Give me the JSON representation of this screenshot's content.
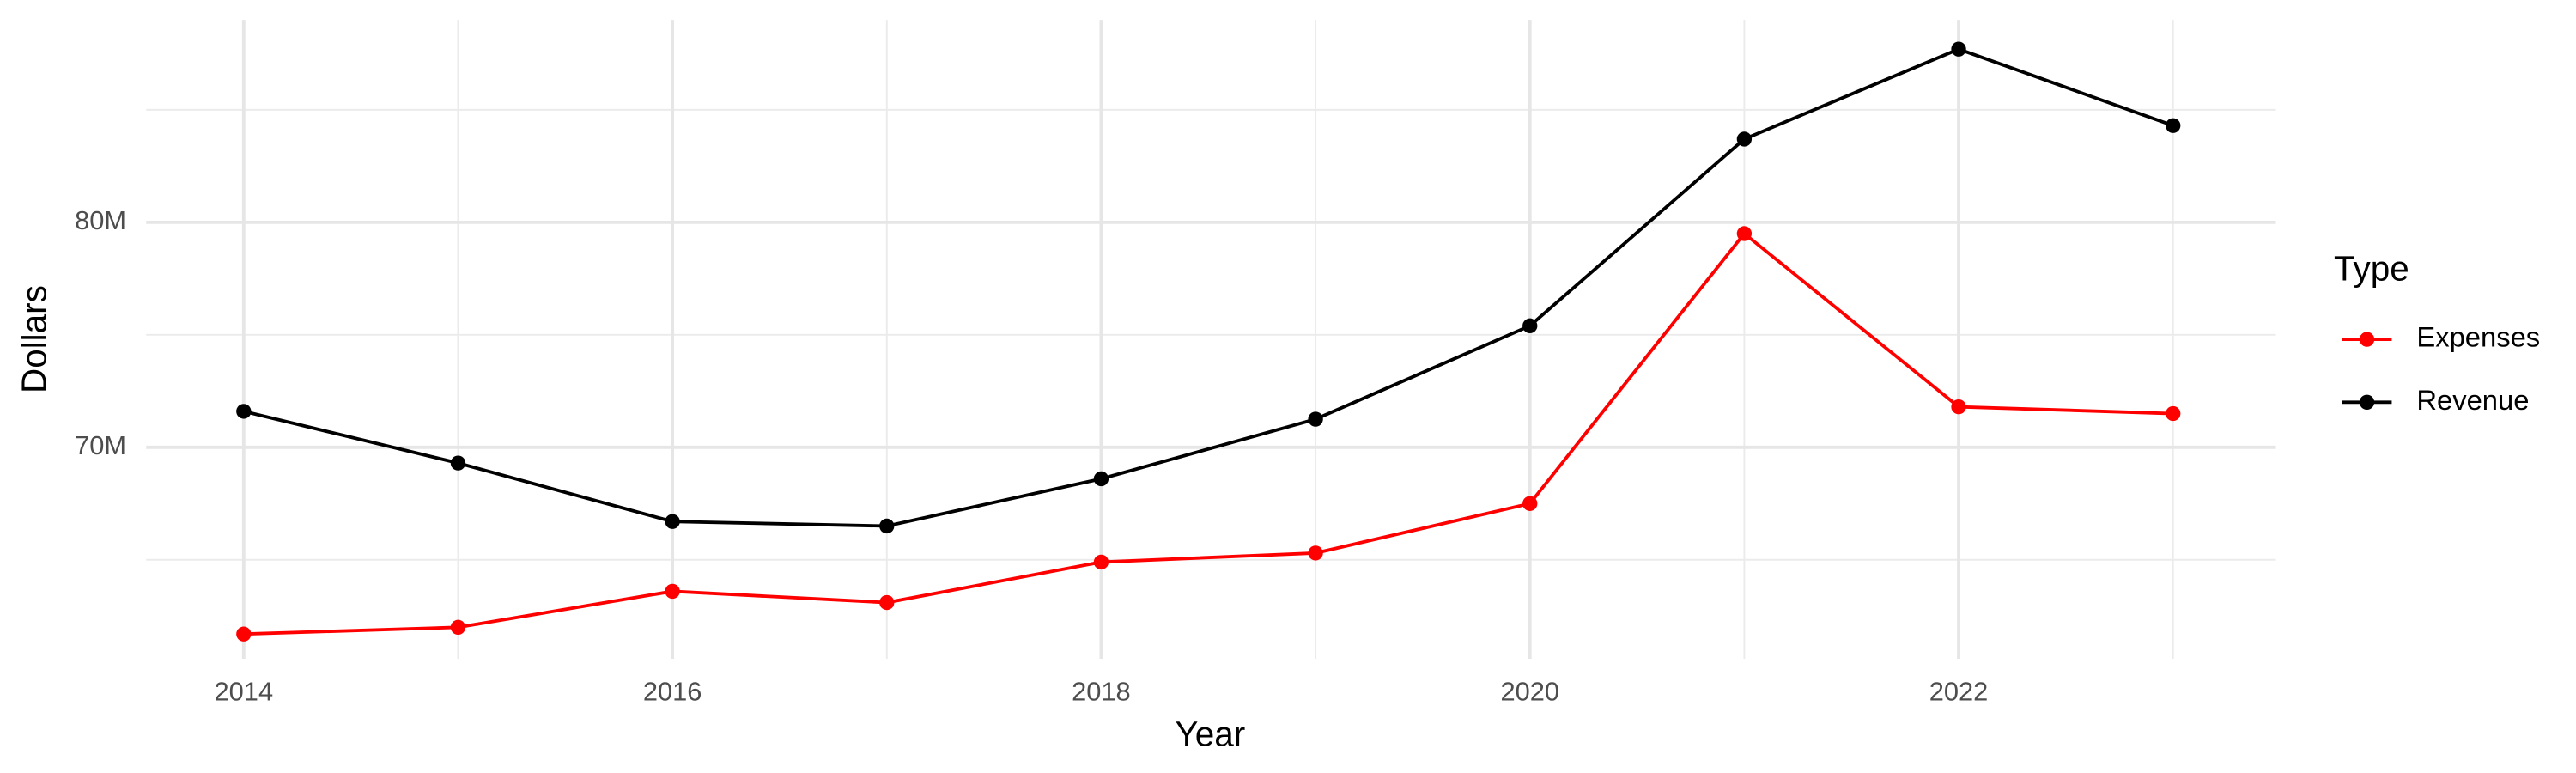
{
  "chart_data": {
    "type": "line",
    "x_label": "Year",
    "y_label": "Dollars",
    "legend_title": "Type",
    "legend_position": "right",
    "grid": true,
    "x": [
      2014,
      2015,
      2016,
      2017,
      2018,
      2019,
      2020,
      2021,
      2022,
      2023
    ],
    "series": [
      {
        "name": "Expenses",
        "color": "#ff0000",
        "values": [
          61700000,
          62000000,
          63600000,
          63100000,
          64900000,
          65300000,
          67500000,
          79500000,
          71800000,
          71500000
        ]
      },
      {
        "name": "Revenue",
        "color": "#000000",
        "values": [
          71600000,
          69300000,
          66700000,
          66500000,
          68600000,
          71250000,
          75400000,
          83700000,
          87700000,
          84300000
        ]
      }
    ],
    "xlim": [
      2013.545,
      2023.48
    ],
    "xticks": [
      2014,
      2016,
      2018,
      2020,
      2022
    ],
    "x_minor_ticks": [
      2015,
      2017,
      2019,
      2021,
      2023
    ],
    "ylim": [
      60600000,
      89000000
    ],
    "yticks": [
      {
        "value": 70000000,
        "label": "70M"
      },
      {
        "value": 80000000,
        "label": "80M"
      }
    ],
    "y_minor_ticks": [
      65000000,
      75000000,
      85000000
    ]
  }
}
